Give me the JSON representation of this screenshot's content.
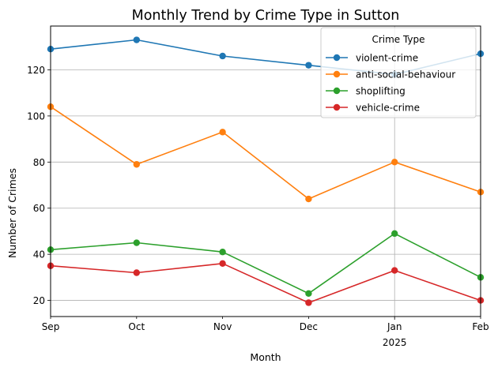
{
  "chart_data": {
    "type": "line",
    "title": "Monthly Trend by Crime Type in Sutton",
    "xlabel": "Month",
    "ylabel": "Number of Crimes",
    "categories": [
      "Sep",
      "Oct",
      "Nov",
      "Dec",
      "Jan",
      "Feb"
    ],
    "category_sublabels": [
      "",
      "",
      "",
      "",
      "2025",
      ""
    ],
    "ylim": [
      13,
      139
    ],
    "yticks": [
      20,
      40,
      60,
      80,
      100,
      120
    ],
    "grid": true,
    "legend": {
      "title": "Crime Type",
      "placement": "top-right"
    },
    "series": [
      {
        "name": "violent-crime",
        "color": "#1f77b4",
        "values": [
          129,
          133,
          126,
          122,
          118,
          127
        ]
      },
      {
        "name": "anti-social-behaviour",
        "color": "#ff7f0e",
        "values": [
          104,
          79,
          93,
          64,
          80,
          67
        ]
      },
      {
        "name": "shoplifting",
        "color": "#2ca02c",
        "values": [
          42,
          45,
          41,
          23,
          49,
          30
        ]
      },
      {
        "name": "vehicle-crime",
        "color": "#d62728",
        "values": [
          35,
          32,
          36,
          19,
          33,
          20
        ]
      }
    ]
  }
}
